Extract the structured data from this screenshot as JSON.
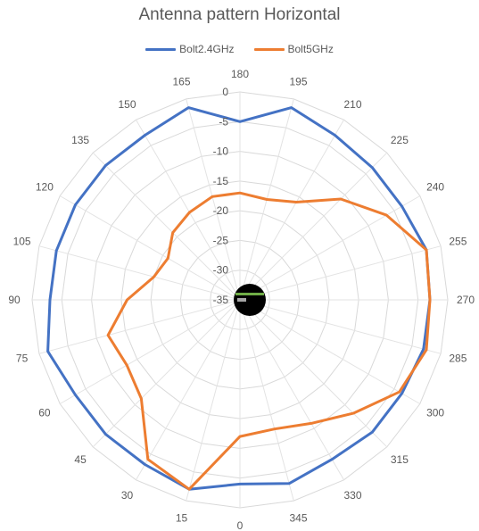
{
  "chart_data": {
    "type": "radar",
    "title": "Antenna pattern Horizontal",
    "categories": [
      "180",
      "195",
      "210",
      "225",
      "240",
      "255",
      "270",
      "285",
      "300",
      "315",
      "330",
      "345",
      "0",
      "15",
      "30",
      "45",
      "60",
      "75",
      "90",
      "105",
      "120",
      "135",
      "150",
      "165"
    ],
    "rlim": [
      -35,
      0
    ],
    "r_ticks": [
      0,
      -5,
      -10,
      -15,
      -20,
      -25,
      -30,
      -35
    ],
    "grid": true,
    "legend_position": "top",
    "series": [
      {
        "name": "Bolt2.4GHz",
        "color": "#4472C4",
        "values": [
          -5,
          -1.5,
          -3,
          -3.5,
          -3.5,
          -2.5,
          -3,
          -3,
          -3.5,
          -3.5,
          -4,
          -3,
          -4,
          -2,
          -3,
          -3,
          -3,
          -1.5,
          -3,
          -3,
          -3,
          -3,
          -3,
          -1.5
        ]
      },
      {
        "name": "Bolt5GHz",
        "color": "#ED7D31",
        "values": [
          -17,
          -17.5,
          -16,
          -11,
          -6.5,
          -2.5,
          -3,
          -2.5,
          -4,
          -8,
          -11,
          -12.5,
          -12,
          -2,
          -4,
          -11.5,
          -13,
          -12,
          -16,
          -20,
          -21,
          -19,
          -18,
          -17
        ]
      }
    ]
  }
}
